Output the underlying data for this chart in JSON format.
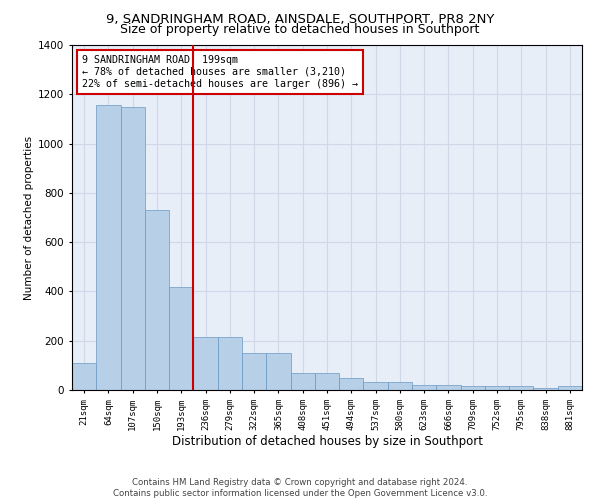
{
  "title1": "9, SANDRINGHAM ROAD, AINSDALE, SOUTHPORT, PR8 2NY",
  "title2": "Size of property relative to detached houses in Southport",
  "xlabel": "Distribution of detached houses by size in Southport",
  "ylabel": "Number of detached properties",
  "categories": [
    "21sqm",
    "64sqm",
    "107sqm",
    "150sqm",
    "193sqm",
    "236sqm",
    "279sqm",
    "322sqm",
    "365sqm",
    "408sqm",
    "451sqm",
    "494sqm",
    "537sqm",
    "580sqm",
    "623sqm",
    "666sqm",
    "709sqm",
    "752sqm",
    "795sqm",
    "838sqm",
    "881sqm"
  ],
  "values": [
    110,
    1155,
    1150,
    730,
    420,
    215,
    215,
    150,
    150,
    70,
    70,
    50,
    33,
    33,
    20,
    20,
    15,
    15,
    15,
    10,
    15
  ],
  "bar_color": "#b8cfe8",
  "bar_edge_color": "#6899c4",
  "vline_index": 4,
  "vline_color": "#cc0000",
  "annotation_text": "9 SANDRINGHAM ROAD: 199sqm\n← 78% of detached houses are smaller (3,210)\n22% of semi-detached houses are larger (896) →",
  "annotation_box_color": "#ffffff",
  "annotation_box_edge": "#cc0000",
  "ylim": [
    0,
    1400
  ],
  "yticks": [
    0,
    200,
    400,
    600,
    800,
    1000,
    1200,
    1400
  ],
  "grid_color": "#d0d8e8",
  "background_color": "#e8eef8",
  "footer1": "Contains HM Land Registry data © Crown copyright and database right 2024.",
  "footer2": "Contains public sector information licensed under the Open Government Licence v3.0.",
  "title_fontsize": 9.5,
  "subtitle_fontsize": 9
}
